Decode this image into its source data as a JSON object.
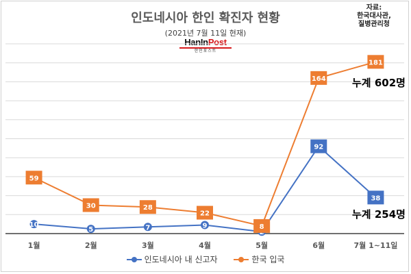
{
  "chart_data": {
    "type": "line",
    "title": "인도네시아 한인 확진자 현황",
    "subtitle": "(2021년 7월 11일 현재)",
    "source": "자료:\n한국대사관,\n질병관리청",
    "logo": {
      "main": "HanIn",
      "accent": "Post",
      "sub": "한인포스트"
    },
    "categories": [
      "1월",
      "2월",
      "3월",
      "4월",
      "5월",
      "6월",
      "7월 1~11일"
    ],
    "ylim": [
      0,
      200
    ],
    "grid": true,
    "legend_position": "bottom",
    "series": [
      {
        "name": "인도네시아 내 신고자",
        "color": "#4472c4",
        "values": [
          10,
          5,
          7,
          9,
          2,
          92,
          38
        ]
      },
      {
        "name": "한국 입국",
        "color": "#ed7d31",
        "values": [
          59,
          30,
          28,
          22,
          8,
          164,
          181
        ]
      }
    ],
    "annotations": [
      {
        "text": "누계 602명",
        "series": 1
      },
      {
        "text": "누계 254명",
        "series": 0
      }
    ]
  }
}
